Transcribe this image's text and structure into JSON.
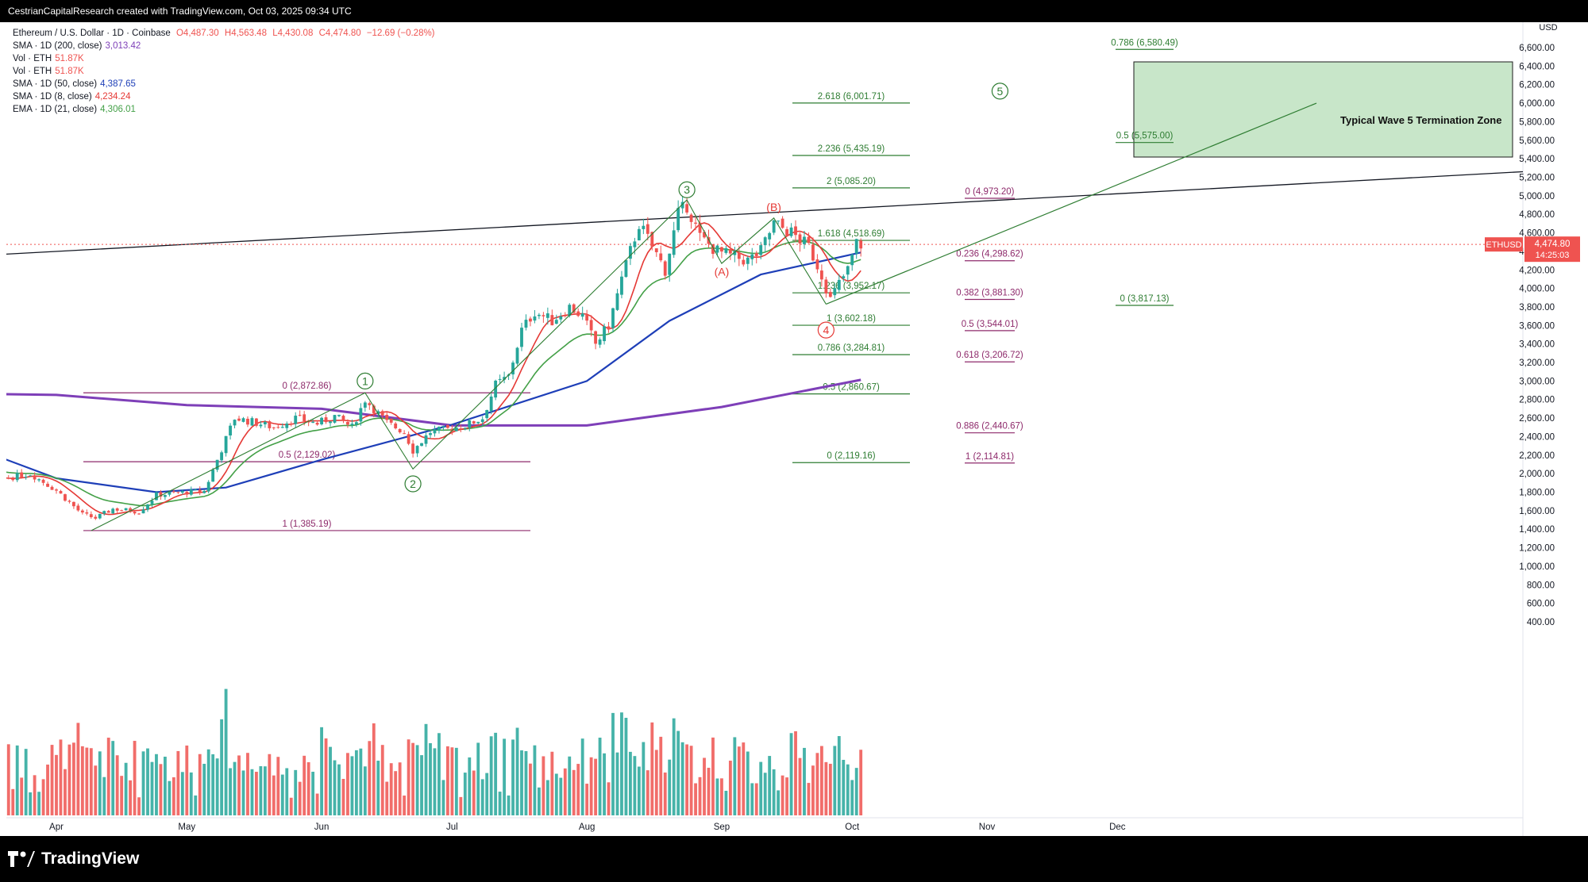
{
  "header": {
    "attribution": "CestrianCapitalResearch created with TradingView.com, Oct 03, 2025 09:34 UTC"
  },
  "legend": {
    "symbol": "Ethereum / U.S. Dollar · 1D · Coinbase",
    "ohlc": {
      "o": "O4,487.30",
      "h": "H4,563.48",
      "l": "L4,430.08",
      "c": "C4,474.80",
      "chg": "−12.69 (−0.28%)"
    },
    "rows": [
      {
        "label": "SMA · 1D (200, close)",
        "value": "3,013.42",
        "color": "#7e3fb8"
      },
      {
        "label": "Vol · ETH",
        "value": "51.87K",
        "color": "#ef5350"
      },
      {
        "label": "Vol · ETH",
        "value": "51.87K",
        "color": "#ef5350"
      },
      {
        "label": "SMA · 1D (50, close)",
        "value": "4,387.65",
        "color": "#1e3fb8"
      },
      {
        "label": "SMA · 1D (8, close)",
        "value": "4,234.24",
        "color": "#e53935"
      },
      {
        "label": "EMA · 1D (21, close)",
        "value": "4,306.01",
        "color": "#43a047"
      }
    ]
  },
  "colors": {
    "up": "#26a69a",
    "down": "#ef5350",
    "sma200": "#7e3fb8",
    "sma50": "#1e3fb8",
    "sma8": "#e53935",
    "ema21": "#43a047",
    "fibPurple": "#8e2a6b",
    "fibGreen": "#2e7d32",
    "zone": "#c8e6c9"
  },
  "chart_data": {
    "type": "candlestick",
    "title": "Ethereum / U.S. Dollar · 1D · Coinbase",
    "currency": "USD",
    "ylim": [
      400,
      6720
    ],
    "price_scale_note": "price axis above 1,200; volume histogram below",
    "y_ticks": [
      "6,600.00",
      "6,400.00",
      "6,200.00",
      "6,000.00",
      "5,800.00",
      "5,600.00",
      "5,400.00",
      "5,200.00",
      "5,000.00",
      "4,800.00",
      "4,600.00",
      "4,400.00",
      "4,200.00",
      "4,000.00",
      "3,800.00",
      "3,600.00",
      "3,400.00",
      "3,200.00",
      "3,000.00",
      "2,800.00",
      "2,600.00",
      "2,400.00",
      "2,200.00",
      "2,000.00",
      "1,800.00",
      "1,600.00",
      "1,400.00",
      "1,200.00",
      "1,000.00",
      "800.00",
      "600.00",
      "400.00"
    ],
    "x_ticks": [
      "Apr",
      "May",
      "Jun",
      "Jul",
      "Aug",
      "Sep",
      "Oct",
      "Nov",
      "Dec"
    ],
    "last_price": {
      "symbol": "ETHUSD",
      "price": "4,474.80",
      "countdown": "14:25:03"
    },
    "candles_close_path": [
      [
        "Mar 04",
        2150
      ],
      [
        "Mar 10",
        2020
      ],
      [
        "Mar 18",
        1930
      ],
      [
        "Mar 26",
        2000
      ],
      [
        "Apr 01",
        1820
      ],
      [
        "Apr 07",
        1560
      ],
      [
        "Apr 10",
        1520
      ],
      [
        "Apr 14",
        1620
      ],
      [
        "Apr 20",
        1590
      ],
      [
        "Apr 24",
        1770
      ],
      [
        "May 01",
        1800
      ],
      [
        "May 05",
        1810
      ],
      [
        "May 08",
        2150
      ],
      [
        "May 12",
        2600
      ],
      [
        "May 16",
        2560
      ],
      [
        "May 21",
        2500
      ],
      [
        "May 26",
        2600
      ],
      [
        "May 31",
        2540
      ],
      [
        "Jun 04",
        2620
      ],
      [
        "Jun 08",
        2500
      ],
      [
        "Jun 11",
        2800
      ],
      [
        "Jun 16",
        2550
      ],
      [
        "Jun 20",
        2450
      ],
      [
        "Jun 22",
        2250
      ],
      [
        "Jun 26",
        2450
      ],
      [
        "Jun 30",
        2480
      ],
      [
        "Jul 04",
        2520
      ],
      [
        "Jul 08",
        2600
      ],
      [
        "Jul 11",
        2960
      ],
      [
        "Jul 14",
        3050
      ],
      [
        "Jul 17",
        3550
      ],
      [
        "Jul 20",
        3750
      ],
      [
        "Jul 24",
        3650
      ],
      [
        "Jul 28",
        3800
      ],
      [
        "Jul 31",
        3700
      ],
      [
        "Aug 03",
        3400
      ],
      [
        "Aug 06",
        3600
      ],
      [
        "Aug 09",
        4100
      ],
      [
        "Aug 13",
        4700
      ],
      [
        "Aug 16",
        4450
      ],
      [
        "Aug 19",
        4200
      ],
      [
        "Aug 22",
        4800
      ],
      [
        "Aug 24",
        4900
      ],
      [
        "Aug 27",
        4550
      ],
      [
        "Aug 31",
        4400
      ],
      [
        "Sep 03",
        4350
      ],
      [
        "Sep 07",
        4300
      ],
      [
        "Sep 10",
        4400
      ],
      [
        "Sep 13",
        4700
      ],
      [
        "Sep 17",
        4600
      ],
      [
        "Sep 21",
        4450
      ],
      [
        "Sep 24",
        4150
      ],
      [
        "Sep 26",
        3880
      ],
      [
        "Sep 28",
        4050
      ],
      [
        "Sep 30",
        4200
      ],
      [
        "Oct 02",
        4487
      ],
      [
        "Oct 03",
        4475
      ]
    ],
    "series": [
      {
        "name": "SMA · 1D (200, close)",
        "points": [
          [
            "Mar 04",
            2870
          ],
          [
            "Apr 01",
            2850
          ],
          [
            "May 01",
            2740
          ],
          [
            "Jun 01",
            2700
          ],
          [
            "Jul 01",
            2520
          ],
          [
            "Aug 01",
            2520
          ],
          [
            "Sep 01",
            2720
          ],
          [
            "Oct 03",
            3013
          ]
        ]
      },
      {
        "name": "SMA · 1D (50, close)",
        "points": [
          [
            "Mar 04",
            2440
          ],
          [
            "Apr 01",
            1950
          ],
          [
            "Apr 24",
            1800
          ],
          [
            "May 10",
            1850
          ],
          [
            "Jun 01",
            2150
          ],
          [
            "Jul 01",
            2530
          ],
          [
            "Aug 01",
            3000
          ],
          [
            "Aug 20",
            3650
          ],
          [
            "Sep 10",
            4150
          ],
          [
            "Oct 03",
            4388
          ]
        ]
      }
    ],
    "annotations": {
      "waves": [
        "1",
        "2",
        "3",
        "(A)",
        "(B)",
        "4",
        "5"
      ],
      "zone_label": "Typical Wave 5 Termination Zone",
      "fib_left": [
        "0 (2,872.86)",
        "0.5 (2,129.02)",
        "1 (1,385.19)"
      ],
      "fib_mid": [
        "2.618 (6,001.71)",
        "2.236 (5,435.19)",
        "2 (5,085.20)",
        "1.618 (4,518.69)",
        "1.236 (3,952.17)",
        "1 (3,602.18)",
        "0.786 (3,284.81)",
        "0.5 (2,860.67)",
        "0 (2,119.16)"
      ],
      "fib_right": [
        "0 (4,973.20)",
        "0.236 (4,298.62)",
        "0.382 (3,881.30)",
        "0.5 (3,544.01)",
        "0.618 (3,206.72)",
        "0.886 (2,440.67)",
        "1 (2,114.81)"
      ],
      "fib_zone": [
        "0.786 (6,580.49)",
        "0.5 (5,575.00)",
        "0 (3,817.13)"
      ]
    }
  },
  "footer": {
    "brand": "TradingView"
  }
}
